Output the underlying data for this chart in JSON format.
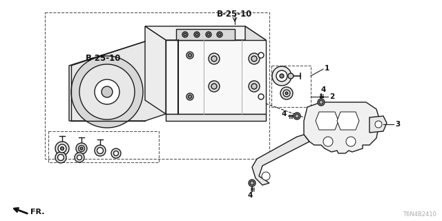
{
  "bg_color": "#ffffff",
  "line_color": "#1a1a1a",
  "dash_color": "#555555",
  "text_color": "#111111",
  "gray_color": "#888888",
  "label_b2510_top": "B-25-10",
  "label_b2510_left": "B-25-10",
  "label_1": "1",
  "label_2": "2",
  "label_3": "3",
  "label_4": "4",
  "fr_label": "FR.",
  "diagram_code": "T6N4B2410",
  "fs_part": 7.5,
  "fs_fr": 8,
  "fs_code": 6
}
